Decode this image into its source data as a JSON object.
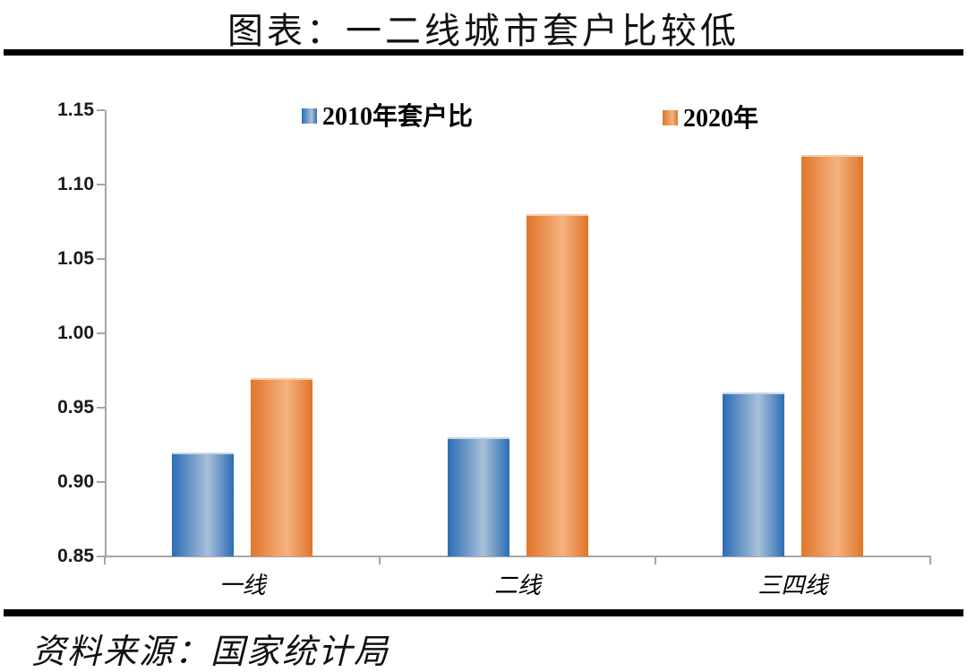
{
  "title": "图表：一二线城市套户比较低",
  "source": "资料来源：国家统计局",
  "colors": {
    "axis": "#a6a6a6",
    "rule": "#000000",
    "text": "#111111"
  },
  "chart_data": {
    "type": "bar",
    "title": "图表：一二线城市套户比较低",
    "categories": [
      "一线",
      "二线",
      "三四线"
    ],
    "series": [
      {
        "name": "2010年套户比",
        "values": [
          0.92,
          0.93,
          0.96
        ],
        "color_dark": "#2a6db5",
        "color_light": "#a9c0d9",
        "color_edge": "#c9d8e8"
      },
      {
        "name": "2020年",
        "values": [
          0.97,
          1.08,
          1.12
        ],
        "color_dark": "#e0752a",
        "color_light": "#f5b27f",
        "color_edge": "#f8cba3"
      }
    ],
    "xlabel": "",
    "ylabel": "",
    "ylim": [
      0.85,
      1.15
    ],
    "ytick_step": 0.05,
    "yticks": [
      "0.85",
      "0.90",
      "0.95",
      "1.00",
      "1.05",
      "1.10",
      "1.15"
    ],
    "legend_position": "top",
    "grid": false
  }
}
